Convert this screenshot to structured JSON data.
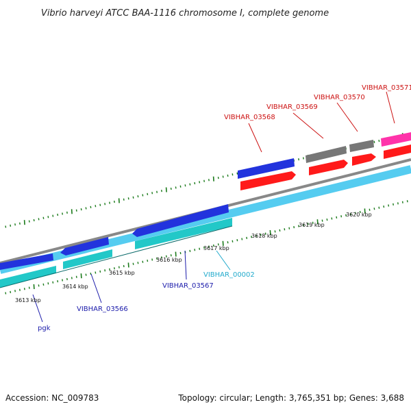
{
  "title": "Vibrio harveyi ATCC BAA-1116 chromosome I, complete genome",
  "accession": "Accession: NC_009783",
  "summary": "Topology: circular; Length: 3,765,351 bp; Genes: 3,688",
  "colors": {
    "backbone": "#888888",
    "forward_strand": "#55ccf0",
    "cds_forward": "#2233dd",
    "gene_forward": "#22c8c8",
    "cds_reverse": "#ff1a1a",
    "gene_reverse_grey": "#777777",
    "gene_reverse_magenta": "#ff33aa",
    "tick": "#1a7a1a",
    "label_blue": "#1a1aaa",
    "label_cyan": "#22aacc",
    "label_red": "#cc1111"
  },
  "ticks": [
    {
      "label": "3613 kbp"
    },
    {
      "label": "3614 kbp"
    },
    {
      "label": "3615 kbp"
    },
    {
      "label": "3616 kbp"
    },
    {
      "label": "3617 kbp"
    },
    {
      "label": "3618 kbp"
    },
    {
      "label": "3619 kbp"
    },
    {
      "label": "3620 kbp"
    }
  ],
  "genes": [
    {
      "id": "pgk",
      "label": "pgk",
      "strand": "forward",
      "color": "label_blue"
    },
    {
      "id": "vibhar-03566",
      "label": "VIBHAR_03566",
      "strand": "forward",
      "color": "label_blue"
    },
    {
      "id": "vibhar-03567",
      "label": "VIBHAR_03567",
      "strand": "forward",
      "color": "label_blue"
    },
    {
      "id": "vibhar-00002",
      "label": "VIBHAR_00002",
      "strand": "forward",
      "color": "label_cyan"
    },
    {
      "id": "vibhar-03568",
      "label": "VIBHAR_03568",
      "strand": "reverse",
      "color": "label_red"
    },
    {
      "id": "vibhar-03569",
      "label": "VIBHAR_03569",
      "strand": "reverse",
      "color": "label_red"
    },
    {
      "id": "vibhar-03570",
      "label": "VIBHAR_03570",
      "strand": "reverse",
      "color": "label_red"
    },
    {
      "id": "vibhar-03571",
      "label": "VIBHAR_03571",
      "strand": "reverse",
      "color": "label_red"
    }
  ]
}
